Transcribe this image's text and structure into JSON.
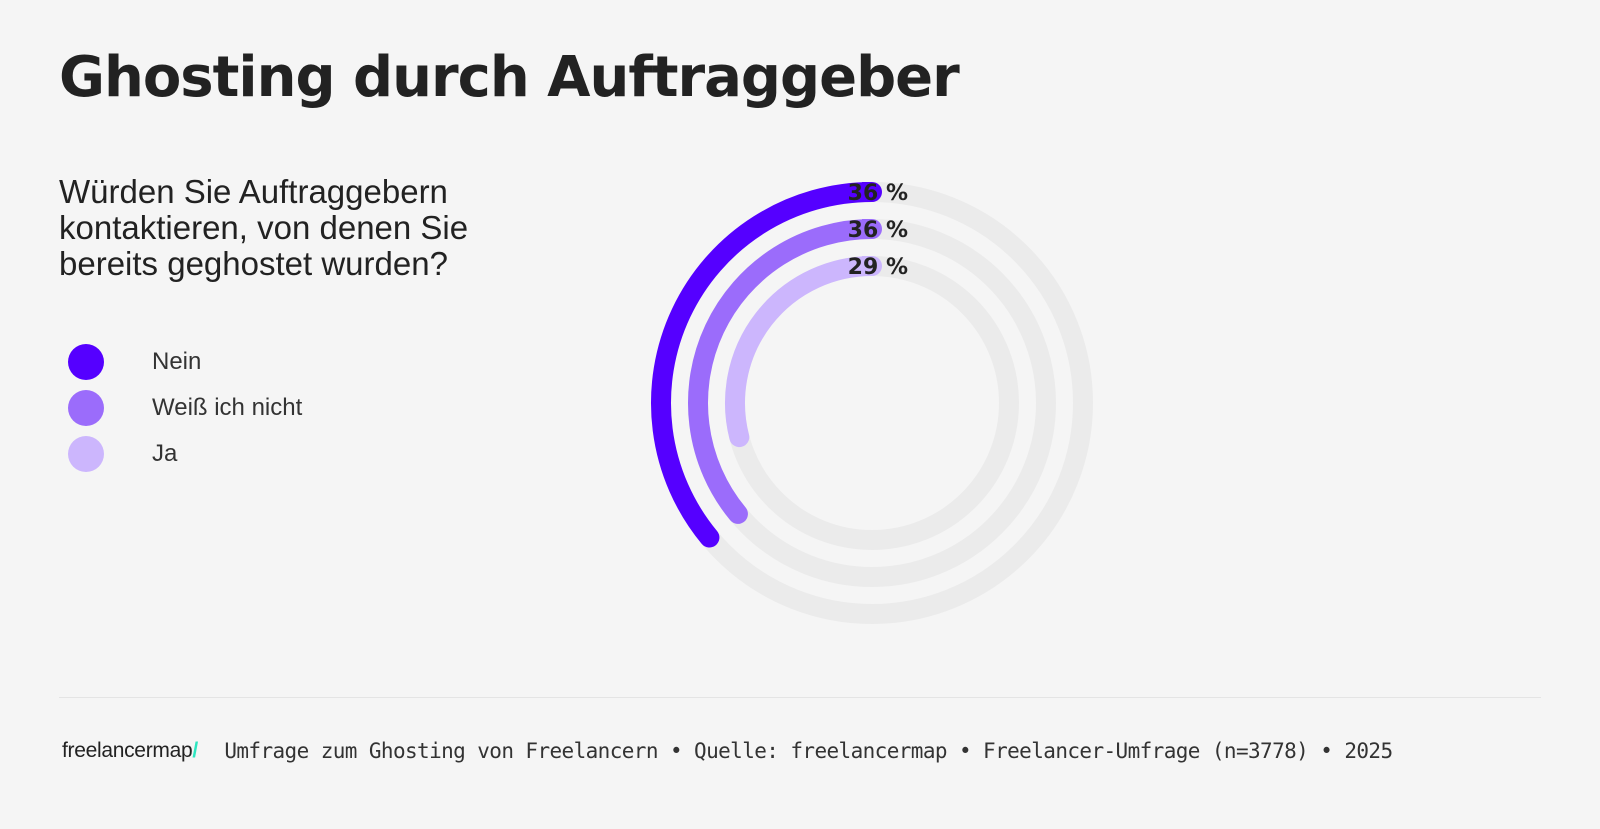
{
  "header": {
    "title": "Ghosting durch Auftraggeber"
  },
  "question": "Würden Sie Auftraggebern kontaktieren, von denen Sie bereits geghostet wurden?",
  "legend": {
    "items": [
      {
        "label": "Nein",
        "color": "#5500ff"
      },
      {
        "label": "Weiß ich nicht",
        "color": "#9b6cfb"
      },
      {
        "label": "Ja",
        "color": "#ccb6fd"
      }
    ]
  },
  "chart_data": {
    "type": "radial-bar",
    "title": "Ghosting durch Auftraggeber",
    "subtitle": "Würden Sie Auftraggebern kontaktieren, von denen Sie bereits geghostet wurden?",
    "categories": [
      "Nein",
      "Weiß ich nicht",
      "Ja"
    ],
    "values": [
      36,
      36,
      29
    ],
    "value_labels": [
      "36 %",
      "36 %",
      "29 %"
    ],
    "unit": "%",
    "max": 100,
    "colors": [
      "#5500ff",
      "#9b6cfb",
      "#ccb6fd"
    ],
    "track_color": "#ebebeb",
    "legend_position": "left"
  },
  "footer": {
    "logo_text": "freelancermap",
    "logo_slash": "/",
    "logo_slash_color": "#2ee6c0",
    "text": "Umfrage zum Ghosting von Freelancern • Quelle: freelancermap • Freelancer-Umfrage (n=3778) • 2025"
  }
}
